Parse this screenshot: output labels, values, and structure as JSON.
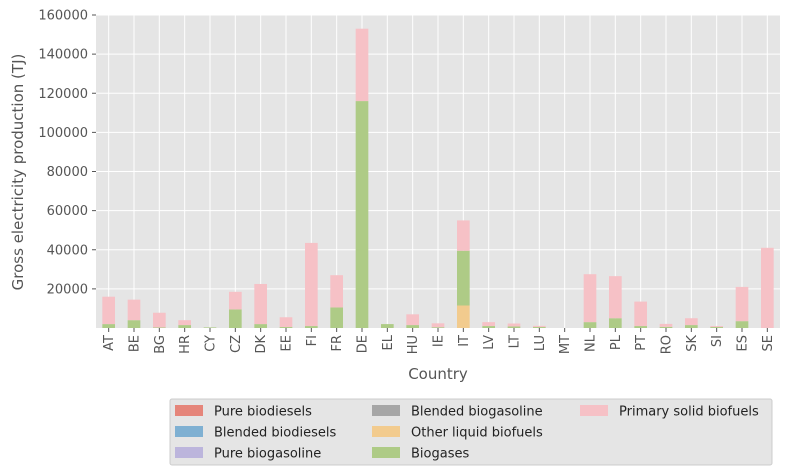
{
  "chart_data": {
    "type": "bar",
    "stacked": true,
    "xlabel": "Country",
    "ylabel": "Gross electricity production (TJ)",
    "ylim": [
      0,
      160000
    ],
    "yticks": [
      20000,
      40000,
      60000,
      80000,
      100000,
      120000,
      140000,
      160000
    ],
    "grid": true,
    "legend_position": "bottom",
    "categories": [
      "AT",
      "BE",
      "BG",
      "HR",
      "CY",
      "CZ",
      "DK",
      "EE",
      "FI",
      "FR",
      "DE",
      "EL",
      "HU",
      "IE",
      "IT",
      "LV",
      "LT",
      "LU",
      "MT",
      "NL",
      "PL",
      "PT",
      "RO",
      "SK",
      "SI",
      "ES",
      "SE"
    ],
    "series": [
      {
        "name": "Pure biodiesels",
        "color": "#E5857A",
        "values": [
          0,
          0,
          0,
          0,
          0,
          0,
          0,
          0,
          0,
          0,
          0,
          0,
          0,
          0,
          0,
          0,
          0,
          0,
          0,
          0,
          0,
          0,
          0,
          0,
          0,
          0,
          0
        ]
      },
      {
        "name": "Blended biodiesels",
        "color": "#7FB0D2",
        "values": [
          0,
          0,
          0,
          0,
          0,
          0,
          0,
          0,
          0,
          0,
          0,
          0,
          0,
          0,
          0,
          0,
          0,
          0,
          0,
          0,
          0,
          0,
          0,
          0,
          0,
          0,
          0
        ]
      },
      {
        "name": "Pure biogasoline",
        "color": "#BCB5DC",
        "values": [
          0,
          0,
          0,
          0,
          0,
          0,
          0,
          0,
          0,
          0,
          0,
          0,
          0,
          0,
          0,
          0,
          0,
          0,
          0,
          0,
          0,
          0,
          0,
          0,
          0,
          0,
          0
        ]
      },
      {
        "name": "Blended biogasoline",
        "color": "#A6A6A6",
        "values": [
          0,
          0,
          0,
          0,
          0,
          0,
          0,
          0,
          0,
          0,
          0,
          0,
          0,
          0,
          0,
          0,
          0,
          0,
          0,
          0,
          0,
          0,
          0,
          0,
          0,
          0,
          0
        ]
      },
      {
        "name": "Other liquid biofuels",
        "color": "#F2CB8E",
        "values": [
          0,
          0,
          0,
          0,
          0,
          0,
          0,
          0,
          0,
          0,
          0,
          0,
          0,
          0,
          11500,
          0,
          0,
          0,
          0,
          0,
          0,
          0,
          0,
          0,
          0,
          0,
          0
        ]
      },
      {
        "name": "Biogases",
        "color": "#AECB86",
        "values": [
          2000,
          4000,
          300,
          1500,
          300,
          9500,
          2000,
          500,
          1000,
          10500,
          116000,
          2000,
          1500,
          400,
          28000,
          1000,
          800,
          500,
          0,
          3000,
          5000,
          1000,
          600,
          1500,
          500,
          3500,
          0
        ]
      },
      {
        "name": "Primary solid biofuels",
        "color": "#F6C1C6",
        "values": [
          14000,
          10500,
          7500,
          2500,
          0,
          9000,
          20500,
          5000,
          42500,
          16500,
          37000,
          0,
          5500,
          2000,
          15500,
          2000,
          1500,
          600,
          0,
          24500,
          21500,
          12500,
          1500,
          3500,
          500,
          17500,
          41000
        ]
      }
    ]
  }
}
